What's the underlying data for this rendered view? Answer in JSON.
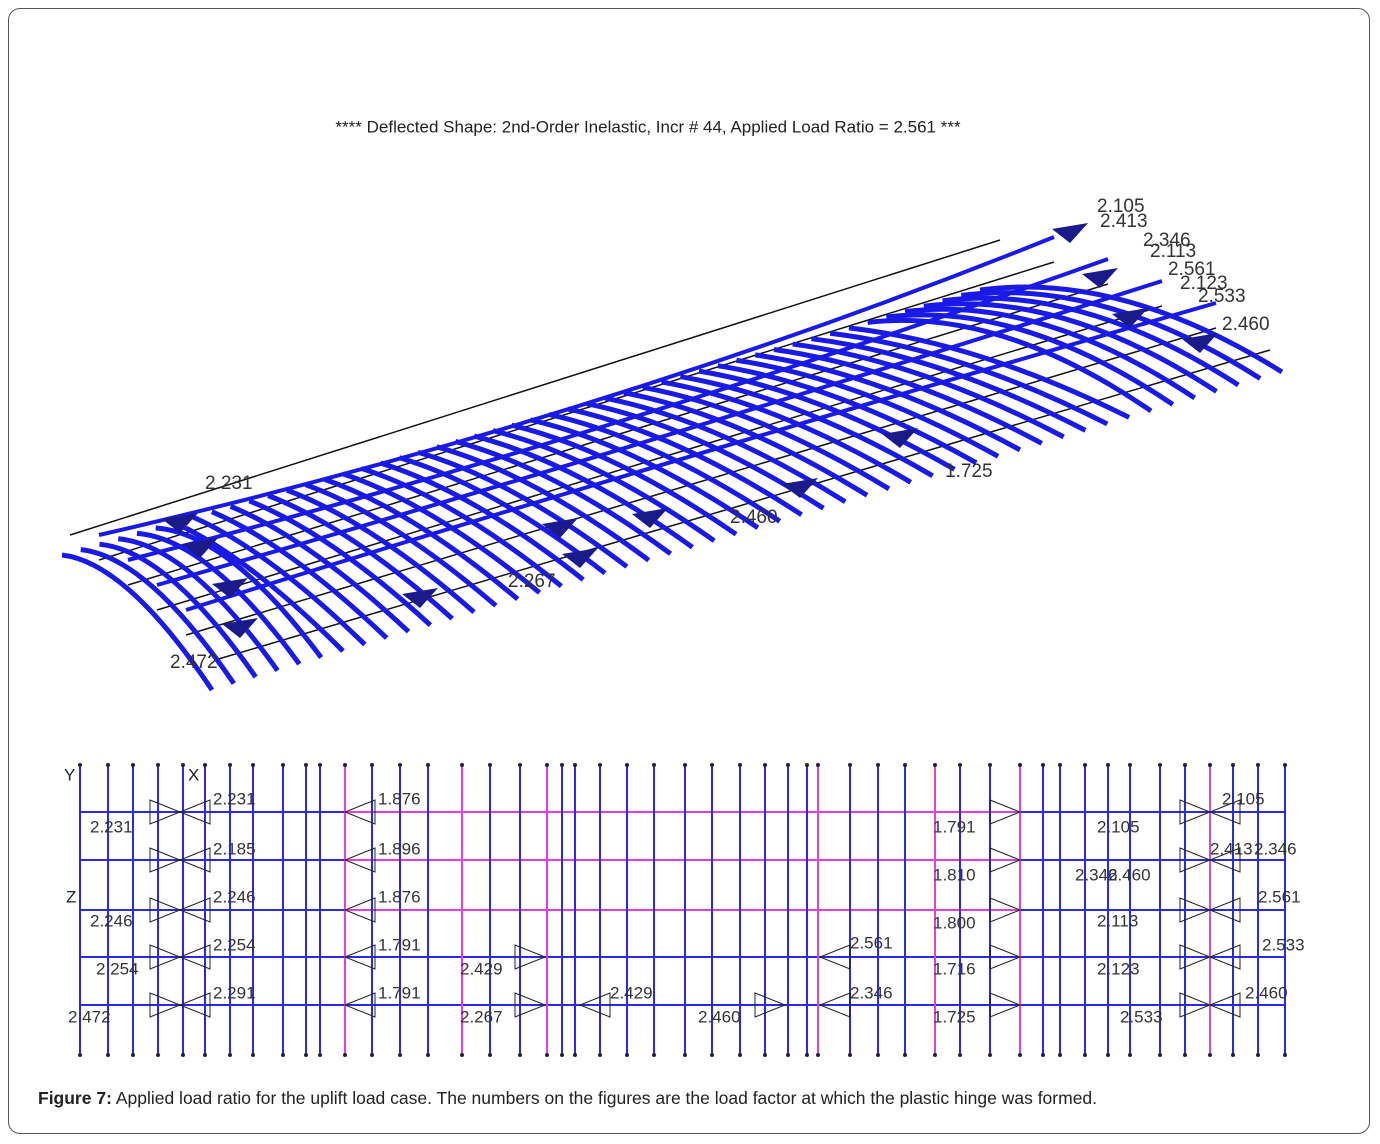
{
  "figure_top": {
    "title": "**** Deflected Shape:  2nd-Order Inelastic, Incr # 44, Applied Load Ratio = 2.561 ***",
    "labels": [
      "2.105",
      "2.413",
      "2.346",
      "2.113",
      "2.561",
      "2.123",
      "2.533",
      "2.460",
      "1.725",
      "2.460",
      "2.231",
      "2.267",
      "2.472"
    ]
  },
  "figure_bottom": {
    "axes": [
      "Y",
      "X",
      "Z"
    ],
    "labels": [
      "2.231",
      "1.876",
      "1.791",
      "2.231",
      "2.105",
      "2.105",
      "2.185",
      "1.896",
      "1.810",
      "2.346",
      "2.460",
      "2.413",
      "2.346",
      "2.246",
      "1.876",
      "2.246",
      "1.800",
      "2.113",
      "2.561",
      "2.254",
      "1.791",
      "2.561",
      "2.429",
      "1.716",
      "2.123",
      "2.533",
      "2.254",
      "2.291",
      "1.791",
      "2.429",
      "2.346",
      "2.472",
      "2.267",
      "2.460",
      "1.725",
      "2.533",
      "2.460"
    ]
  },
  "caption": {
    "label": "Figure 7:",
    "text": "Applied load ratio for the uplift load case. The numbers on the figures are the load factor at which the plastic hinge was formed."
  }
}
